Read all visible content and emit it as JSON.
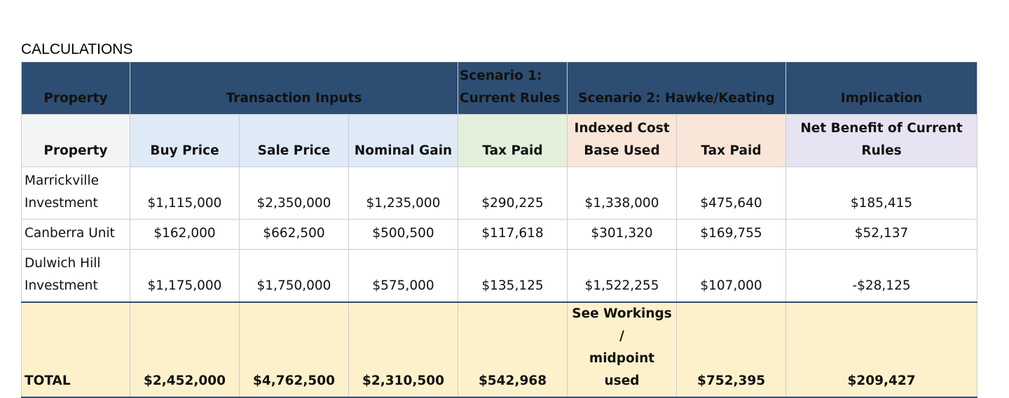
{
  "section_title": "CALCULATIONS",
  "group_headers": {
    "property": "Property",
    "transaction_inputs": "Transaction Inputs",
    "scenario1_line1": "Scenario 1:",
    "scenario1_line2": "Current Rules",
    "scenario2": "Scenario 2: Hawke/Keating",
    "implication": "Implication"
  },
  "column_headers": {
    "property": "Property",
    "buy_price": "Buy Price",
    "sale_price": "Sale Price",
    "nominal_gain": "Nominal Gain",
    "s1_tax_paid": "Tax Paid",
    "indexed_line1": "Indexed Cost",
    "indexed_line2": "Base Used",
    "s2_tax_paid": "Tax Paid",
    "net_benefit": "Net Benefit of Current Rules"
  },
  "rows": [
    {
      "name_line1": "Marrickville",
      "name_line2": "Investment",
      "buy_price": "$1,115,000",
      "sale_price": "$2,350,000",
      "nominal_gain": "$1,235,000",
      "s1_tax_paid": "$290,225",
      "indexed_cost_base": "$1,338,000",
      "s2_tax_paid": "$475,640",
      "net_benefit": "$185,415"
    },
    {
      "name_line1": "Canberra Unit",
      "buy_price": "$162,000",
      "sale_price": "$662,500",
      "nominal_gain": "$500,500",
      "s1_tax_paid": "$117,618",
      "indexed_cost_base": "$301,320",
      "s2_tax_paid": "$169,755",
      "net_benefit": "$52,137"
    },
    {
      "name_line1": "Dulwich Hill",
      "name_line2": "Investment",
      "buy_price": "$1,175,000",
      "sale_price": "$1,750,000",
      "nominal_gain": "$575,000",
      "s1_tax_paid": "$135,125",
      "indexed_cost_base": "$1,522,255",
      "s2_tax_paid": "$107,000",
      "net_benefit": "-$28,125"
    }
  ],
  "total": {
    "label": "TOTAL",
    "buy_price": "$2,452,000",
    "sale_price": "$4,762,500",
    "nominal_gain": "$2,310,500",
    "s1_tax_paid": "$542,968",
    "indexed_line1": "See Workings /",
    "indexed_line2": "midpoint used",
    "s2_tax_paid": "$752,395",
    "net_benefit": "$209,427"
  },
  "colors": {
    "header_bg": "#2e4d72",
    "property_bg": "#f3f4f6",
    "inputs_bg": "#deeaf6",
    "scenario1_bg": "#e3f0dc",
    "scenario2_bg": "#fae6d8",
    "implication_bg": "#e8e3f3",
    "total_bg": "#fcf1cb",
    "negative_text": "#d63a2f"
  }
}
